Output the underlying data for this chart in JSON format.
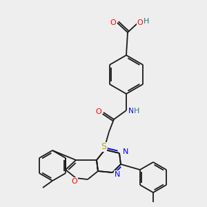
{
  "bg_color": "#eeeeee",
  "bond_color": "#1a1a1a",
  "lw": 1.3,
  "colors": {
    "O": "#ff0000",
    "N": "#0000ee",
    "S": "#aaaa00",
    "H": "#227777",
    "C": "#1a1a1a"
  },
  "fs": 7.5
}
